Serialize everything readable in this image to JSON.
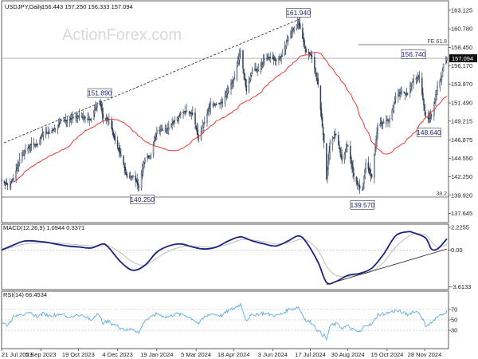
{
  "chart_data": {
    "type": "candlestick",
    "main": {
      "title": "USDJPY,Daily",
      "quote": "156.443 157.250 156.333 157.094",
      "ylim": [
        136.5,
        164.3
      ],
      "yticks": [
        163.125,
        160.78,
        158.45,
        156.17,
        153.87,
        151.49,
        149.215,
        146.875,
        144.55,
        142.25,
        139.92,
        137.645
      ],
      "ytick_labels": [
        "163.125",
        "160.780",
        "158.450",
        "156.170",
        "153.870",
        "151.490",
        "149.215",
        "146.875",
        "144.550",
        "142.250",
        "139.920",
        "137.645"
      ],
      "current_price": 157.094,
      "current_price_label": "157.094",
      "pivots": [
        {
          "label": "151.890",
          "date": "2023-11-13",
          "value": 151.89
        },
        {
          "label": "140.250",
          "date": "2024-01-02",
          "value": 140.25
        },
        {
          "label": "161.940",
          "date": "2024-07-03",
          "value": 161.94
        },
        {
          "label": "139.570",
          "date": "2024-09-16",
          "value": 139.57
        },
        {
          "label": "156.740",
          "date": "2024-11-15",
          "value": 156.74
        },
        {
          "label": "148.640",
          "date": "2024-12-03",
          "value": 148.64
        }
      ],
      "fib_levels": [
        {
          "label": "FE 61.8",
          "value": 158.8
        },
        {
          "label": "38.2",
          "value": 139.7
        }
      ],
      "trendline": {
        "from": {
          "date": "2023-07-24",
          "value": 146.5
        },
        "to": {
          "date": "2024-07-03",
          "value": 161.94
        }
      },
      "ma_label": "",
      "ma_color": "#e53935",
      "candle_color": "#2e3f5a",
      "price": [
        [
          "2023-07-21",
          141.8
        ],
        [
          "2023-07-28",
          141.2
        ],
        [
          "2023-08-04",
          142.0
        ],
        [
          "2023-08-11",
          144.4
        ],
        [
          "2023-08-18",
          145.5
        ],
        [
          "2023-08-25",
          146.3
        ],
        [
          "2023-09-01",
          146.2
        ],
        [
          "2023-09-08",
          147.8
        ],
        [
          "2023-09-15",
          147.8
        ],
        [
          "2023-09-22",
          148.3
        ],
        [
          "2023-09-29",
          149.3
        ],
        [
          "2023-10-06",
          149.3
        ],
        [
          "2023-10-13",
          149.6
        ],
        [
          "2023-10-20",
          149.9
        ],
        [
          "2023-10-27",
          149.6
        ],
        [
          "2023-11-03",
          149.4
        ],
        [
          "2023-11-10",
          151.5
        ],
        [
          "2023-11-13",
          151.8
        ],
        [
          "2023-11-17",
          149.6
        ],
        [
          "2023-11-24",
          149.4
        ],
        [
          "2023-12-01",
          146.8
        ],
        [
          "2023-12-08",
          144.9
        ],
        [
          "2023-12-15",
          142.2
        ],
        [
          "2023-12-22",
          142.4
        ],
        [
          "2023-12-29",
          141.0
        ],
        [
          "2024-01-05",
          144.6
        ],
        [
          "2024-01-12",
          144.9
        ],
        [
          "2024-01-19",
          148.1
        ],
        [
          "2024-01-26",
          148.1
        ],
        [
          "2024-02-02",
          148.4
        ],
        [
          "2024-02-09",
          149.3
        ],
        [
          "2024-02-16",
          150.2
        ],
        [
          "2024-02-23",
          150.5
        ],
        [
          "2024-03-01",
          150.1
        ],
        [
          "2024-03-08",
          147.1
        ],
        [
          "2024-03-15",
          149.1
        ],
        [
          "2024-03-22",
          151.4
        ],
        [
          "2024-03-29",
          151.3
        ],
        [
          "2024-04-05",
          151.6
        ],
        [
          "2024-04-12",
          153.3
        ],
        [
          "2024-04-19",
          154.6
        ],
        [
          "2024-04-26",
          158.0
        ],
        [
          "2024-05-03",
          153.0
        ],
        [
          "2024-05-10",
          155.7
        ],
        [
          "2024-05-17",
          155.6
        ],
        [
          "2024-05-24",
          157.0
        ],
        [
          "2024-05-31",
          157.2
        ],
        [
          "2024-06-07",
          156.8
        ],
        [
          "2024-06-14",
          157.4
        ],
        [
          "2024-06-21",
          159.7
        ],
        [
          "2024-06-28",
          160.9
        ],
        [
          "2024-07-03",
          161.6
        ],
        [
          "2024-07-05",
          160.8
        ],
        [
          "2024-07-12",
          157.9
        ],
        [
          "2024-07-19",
          157.4
        ],
        [
          "2024-07-26",
          153.8
        ],
        [
          "2024-08-02",
          146.5
        ],
        [
          "2024-08-05",
          142.0
        ],
        [
          "2024-08-09",
          146.5
        ],
        [
          "2024-08-16",
          147.6
        ],
        [
          "2024-08-23",
          144.3
        ],
        [
          "2024-08-30",
          146.2
        ],
        [
          "2024-09-06",
          142.3
        ],
        [
          "2024-09-13",
          140.8
        ],
        [
          "2024-09-16",
          140.6
        ],
        [
          "2024-09-20",
          143.9
        ],
        [
          "2024-09-27",
          142.2
        ],
        [
          "2024-10-04",
          148.7
        ],
        [
          "2024-10-11",
          149.1
        ],
        [
          "2024-10-18",
          149.5
        ],
        [
          "2024-10-25",
          152.3
        ],
        [
          "2024-11-01",
          152.9
        ],
        [
          "2024-11-08",
          152.6
        ],
        [
          "2024-11-15",
          154.4
        ],
        [
          "2024-11-22",
          154.8
        ],
        [
          "2024-11-29",
          149.8
        ],
        [
          "2024-12-03",
          149.5
        ],
        [
          "2024-12-06",
          150.0
        ],
        [
          "2024-12-13",
          153.6
        ],
        [
          "2024-12-18",
          154.8
        ],
        [
          "2024-12-20",
          156.4
        ],
        [
          "2024-12-24",
          157.1
        ]
      ]
    },
    "macd": {
      "title": "MACD(12,26,9) 1.0944 0.3371",
      "ylim": [
        -3.9,
        2.55
      ],
      "yticks": [
        2.2255,
        0.0,
        -3.6133
      ],
      "ytick_labels": [
        "2.2255",
        "0.00",
        "-3.6133"
      ],
      "macd_color": "#1a237e",
      "signal_color": "#bdbdbd",
      "macd": [
        [
          "2023-07-21",
          0.0
        ],
        [
          "2023-08-04",
          0.5
        ],
        [
          "2023-08-18",
          0.9
        ],
        [
          "2023-09-08",
          0.8
        ],
        [
          "2023-09-22",
          0.6
        ],
        [
          "2023-10-06",
          0.4
        ],
        [
          "2023-10-20",
          0.3
        ],
        [
          "2023-11-03",
          0.2
        ],
        [
          "2023-11-17",
          0.6
        ],
        [
          "2023-11-24",
          0.2
        ],
        [
          "2023-12-08",
          -1.2
        ],
        [
          "2023-12-22",
          -2.0
        ],
        [
          "2024-01-05",
          -1.5
        ],
        [
          "2024-01-19",
          -0.2
        ],
        [
          "2024-02-02",
          0.4
        ],
        [
          "2024-02-16",
          0.6
        ],
        [
          "2024-03-01",
          0.3
        ],
        [
          "2024-03-15",
          0.1
        ],
        [
          "2024-03-29",
          0.3
        ],
        [
          "2024-04-12",
          0.9
        ],
        [
          "2024-04-26",
          1.3
        ],
        [
          "2024-05-10",
          0.9
        ],
        [
          "2024-05-24",
          0.6
        ],
        [
          "2024-06-07",
          0.4
        ],
        [
          "2024-06-21",
          0.9
        ],
        [
          "2024-07-03",
          1.4
        ],
        [
          "2024-07-12",
          0.8
        ],
        [
          "2024-07-26",
          -1.2
        ],
        [
          "2024-08-05",
          -3.2
        ],
        [
          "2024-08-16",
          -3.1
        ],
        [
          "2024-08-30",
          -2.5
        ],
        [
          "2024-09-13",
          -2.3
        ],
        [
          "2024-09-27",
          -1.8
        ],
        [
          "2024-10-11",
          -0.4
        ],
        [
          "2024-10-25",
          1.4
        ],
        [
          "2024-11-08",
          1.8
        ],
        [
          "2024-11-15",
          1.7
        ],
        [
          "2024-11-29",
          1.2
        ],
        [
          "2024-12-06",
          0.1
        ],
        [
          "2024-12-13",
          0.1
        ],
        [
          "2024-12-20",
          0.7
        ],
        [
          "2024-12-24",
          1.1
        ]
      ],
      "signal": [
        [
          "2023-07-21",
          0.0
        ],
        [
          "2023-08-04",
          0.3
        ],
        [
          "2023-08-18",
          0.6
        ],
        [
          "2023-09-08",
          0.7
        ],
        [
          "2023-09-22",
          0.7
        ],
        [
          "2023-10-06",
          0.6
        ],
        [
          "2023-10-20",
          0.5
        ],
        [
          "2023-11-03",
          0.4
        ],
        [
          "2023-11-17",
          0.4
        ],
        [
          "2023-11-24",
          0.4
        ],
        [
          "2023-12-08",
          -0.3
        ],
        [
          "2023-12-22",
          -1.2
        ],
        [
          "2024-01-05",
          -1.5
        ],
        [
          "2024-01-19",
          -0.8
        ],
        [
          "2024-02-02",
          -0.1
        ],
        [
          "2024-02-16",
          0.3
        ],
        [
          "2024-03-01",
          0.4
        ],
        [
          "2024-03-15",
          0.3
        ],
        [
          "2024-03-29",
          0.3
        ],
        [
          "2024-04-12",
          0.6
        ],
        [
          "2024-04-26",
          1.0
        ],
        [
          "2024-05-10",
          1.0
        ],
        [
          "2024-05-24",
          0.8
        ],
        [
          "2024-06-07",
          0.6
        ],
        [
          "2024-06-21",
          0.7
        ],
        [
          "2024-07-03",
          1.0
        ],
        [
          "2024-07-12",
          1.0
        ],
        [
          "2024-07-26",
          0.0
        ],
        [
          "2024-08-05",
          -1.6
        ],
        [
          "2024-08-16",
          -2.5
        ],
        [
          "2024-08-30",
          -2.6
        ],
        [
          "2024-09-13",
          -2.4
        ],
        [
          "2024-09-27",
          -2.1
        ],
        [
          "2024-10-11",
          -1.2
        ],
        [
          "2024-10-25",
          0.3
        ],
        [
          "2024-11-08",
          1.3
        ],
        [
          "2024-11-15",
          1.6
        ],
        [
          "2024-11-29",
          1.5
        ],
        [
          "2024-12-06",
          0.8
        ],
        [
          "2024-12-13",
          0.3
        ],
        [
          "2024-12-20",
          0.4
        ],
        [
          "2024-12-24",
          0.6
        ]
      ],
      "trendline": {
        "from": {
          "date": "2024-08-05",
          "value": -3.4
        },
        "to": {
          "date": "2024-12-24",
          "value": 0.1
        }
      }
    },
    "rsi": {
      "title": "RSI(14) 66.4534",
      "ylim": [
        -5,
        105
      ],
      "yticks": [
        70,
        50,
        30
      ],
      "ytick_labels": [
        "70",
        "50",
        "30"
      ],
      "color": "#5dade2",
      "values": [
        [
          "2023-07-21",
          45
        ],
        [
          "2023-07-28",
          40
        ],
        [
          "2023-08-04",
          55
        ],
        [
          "2023-08-11",
          63
        ],
        [
          "2023-08-18",
          60
        ],
        [
          "2023-08-25",
          62
        ],
        [
          "2023-09-01",
          57
        ],
        [
          "2023-09-08",
          62
        ],
        [
          "2023-09-15",
          58
        ],
        [
          "2023-09-22",
          60
        ],
        [
          "2023-09-29",
          62
        ],
        [
          "2023-10-06",
          55
        ],
        [
          "2023-10-13",
          58
        ],
        [
          "2023-10-20",
          60
        ],
        [
          "2023-10-27",
          55
        ],
        [
          "2023-11-03",
          50
        ],
        [
          "2023-11-10",
          63
        ],
        [
          "2023-11-17",
          45
        ],
        [
          "2023-11-24",
          46
        ],
        [
          "2023-12-01",
          40
        ],
        [
          "2023-12-08",
          35
        ],
        [
          "2023-12-15",
          30
        ],
        [
          "2023-12-22",
          34
        ],
        [
          "2023-12-29",
          25
        ],
        [
          "2024-01-05",
          50
        ],
        [
          "2024-01-12",
          54
        ],
        [
          "2024-01-19",
          62
        ],
        [
          "2024-01-26",
          58
        ],
        [
          "2024-02-02",
          55
        ],
        [
          "2024-02-09",
          62
        ],
        [
          "2024-02-16",
          60
        ],
        [
          "2024-02-23",
          58
        ],
        [
          "2024-03-01",
          52
        ],
        [
          "2024-03-08",
          43
        ],
        [
          "2024-03-15",
          55
        ],
        [
          "2024-03-22",
          62
        ],
        [
          "2024-03-29",
          60
        ],
        [
          "2024-04-05",
          58
        ],
        [
          "2024-04-12",
          68
        ],
        [
          "2024-04-19",
          72
        ],
        [
          "2024-04-26",
          80
        ],
        [
          "2024-05-03",
          50
        ],
        [
          "2024-05-10",
          60
        ],
        [
          "2024-05-17",
          62
        ],
        [
          "2024-05-24",
          63
        ],
        [
          "2024-05-31",
          60
        ],
        [
          "2024-06-07",
          58
        ],
        [
          "2024-06-14",
          62
        ],
        [
          "2024-06-21",
          70
        ],
        [
          "2024-06-28",
          72
        ],
        [
          "2024-07-03",
          75
        ],
        [
          "2024-07-12",
          48
        ],
        [
          "2024-07-19",
          45
        ],
        [
          "2024-07-26",
          28
        ],
        [
          "2024-08-02",
          20
        ],
        [
          "2024-08-05",
          12
        ],
        [
          "2024-08-09",
          38
        ],
        [
          "2024-08-16",
          42
        ],
        [
          "2024-08-23",
          35
        ],
        [
          "2024-08-30",
          38
        ],
        [
          "2024-09-06",
          30
        ],
        [
          "2024-09-13",
          26
        ],
        [
          "2024-09-20",
          42
        ],
        [
          "2024-09-27",
          40
        ],
        [
          "2024-10-04",
          60
        ],
        [
          "2024-10-11",
          62
        ],
        [
          "2024-10-18",
          64
        ],
        [
          "2024-10-25",
          68
        ],
        [
          "2024-11-01",
          65
        ],
        [
          "2024-11-08",
          60
        ],
        [
          "2024-11-15",
          67
        ],
        [
          "2024-11-22",
          64
        ],
        [
          "2024-11-29",
          40
        ],
        [
          "2024-12-06",
          45
        ],
        [
          "2024-12-13",
          55
        ],
        [
          "2024-12-18",
          60
        ],
        [
          "2024-12-20",
          64
        ],
        [
          "2024-12-24",
          66
        ]
      ]
    },
    "x_range": [
      "2023-07-21",
      "2024-12-26"
    ],
    "x_ticks": [
      "2023-07-21",
      "2023-09-05",
      "2023-10-19",
      "2023-12-04",
      "2024-01-19",
      "2024-03-05",
      "2024-04-18",
      "2024-06-03",
      "2024-07-17",
      "2024-08-30",
      "2024-10-15",
      "2024-11-28"
    ],
    "x_tick_labels": [
      "21 Jul 2023",
      "5 Sep 2023",
      "19 Oct 2023",
      "4 Dec 2023",
      "19 Jan 2024",
      "5 Mar 2024",
      "18 Apr 2024",
      "3 Jun 2024",
      "17 Jul 2024",
      "30 Aug 2024",
      "15 Oct 2024",
      "28 Nov 2024"
    ]
  },
  "watermark": "ActionForex.com"
}
